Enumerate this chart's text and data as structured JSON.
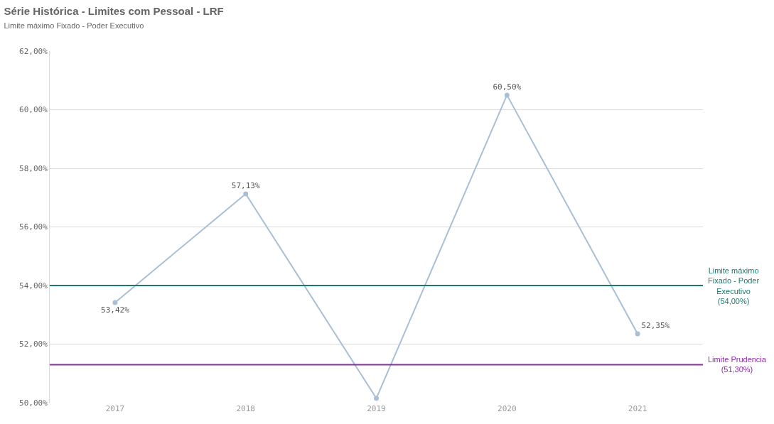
{
  "chart_data": {
    "type": "line",
    "title": "Série Histórica - Limites com Pessoal - LRF",
    "subtitle": "Limite máximo Fixado - Poder Executivo",
    "categories": [
      "2017",
      "2018",
      "2019",
      "2020",
      "2021"
    ],
    "series": [
      {
        "color": "#a9bfd6",
        "values": [
          53.42,
          57.13,
          50.15,
          60.5,
          52.35
        ],
        "value_labels": [
          "53,42%",
          "57,13%",
          null,
          "60,50%",
          "52,35%"
        ]
      }
    ],
    "ylim": [
      50,
      62
    ],
    "yticks": [
      {
        "value": 50,
        "label": "50,00%"
      },
      {
        "value": 52,
        "label": "52,00%"
      },
      {
        "value": 54,
        "label": "54,00%"
      },
      {
        "value": 56,
        "label": "56,00%"
      },
      {
        "value": 58,
        "label": "58,00%"
      },
      {
        "value": 60,
        "label": "60,00%"
      },
      {
        "value": 62,
        "label": "62,00%"
      }
    ],
    "ref_lines": [
      {
        "axis": "y",
        "value": 54,
        "label": "Limite máximo Fixado - Poder Executivo (54,00%)",
        "color": "#1b7a6f"
      },
      {
        "axis": "y",
        "value": 51.3,
        "label": "Limite Prudencia (51,30%)",
        "color": "#8b2fa5"
      }
    ],
    "grid": "y",
    "marker": "circle",
    "legend": false
  }
}
